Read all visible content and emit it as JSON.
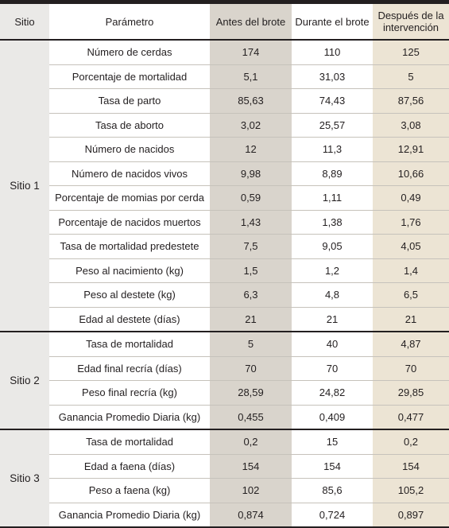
{
  "table": {
    "headers": {
      "site": "Sitio",
      "param": "Parámetro",
      "before": "Antes del brote",
      "during": "Durante el brote",
      "after_line1": "Después de la",
      "after_line2": "intervención"
    },
    "groups": [
      {
        "site": "Sitio 1",
        "rows": [
          {
            "param": "Número de cerdas",
            "before": "174",
            "during": "110",
            "after": "125"
          },
          {
            "param": "Porcentaje de mortalidad",
            "before": "5,1",
            "during": "31,03",
            "after": "5"
          },
          {
            "param": "Tasa de parto",
            "before": "85,63",
            "during": "74,43",
            "after": "87,56"
          },
          {
            "param": "Tasa de aborto",
            "before": "3,02",
            "during": "25,57",
            "after": "3,08"
          },
          {
            "param": "Número de nacidos",
            "before": "12",
            "during": "11,3",
            "after": "12,91"
          },
          {
            "param": "Número de nacidos vivos",
            "before": "9,98",
            "during": "8,89",
            "after": "10,66"
          },
          {
            "param": "Porcentaje de momias por cerda",
            "before": "0,59",
            "during": "1,11",
            "after": "0,49"
          },
          {
            "param": "Porcentaje de nacidos muertos",
            "before": "1,43",
            "during": "1,38",
            "after": "1,76"
          },
          {
            "param": "Tasa de mortalidad predestete",
            "before": "7,5",
            "during": "9,05",
            "after": "4,05"
          },
          {
            "param": "Peso al nacimiento (kg)",
            "before": "1,5",
            "during": "1,2",
            "after": "1,4"
          },
          {
            "param": "Peso al destete (kg)",
            "before": "6,3",
            "during": "4,8",
            "after": "6,5"
          },
          {
            "param": "Edad al destete (días)",
            "before": "21",
            "during": "21",
            "after": "21"
          }
        ]
      },
      {
        "site": "Sitio 2",
        "rows": [
          {
            "param": "Tasa de mortalidad",
            "before": "5",
            "during": "40",
            "after": "4,87"
          },
          {
            "param": "Edad final recría (días)",
            "before": "70",
            "during": "70",
            "after": "70"
          },
          {
            "param": "Peso final recría (kg)",
            "before": "28,59",
            "during": "24,82",
            "after": "29,85"
          },
          {
            "param": "Ganancia Promedio Diaria (kg)",
            "before": "0,455",
            "during": "0,409",
            "after": "0,477"
          }
        ]
      },
      {
        "site": "Sitio 3",
        "rows": [
          {
            "param": "Tasa de mortalidad",
            "before": "0,2",
            "during": "15",
            "after": "0,2"
          },
          {
            "param": "Edad a faena (días)",
            "before": "154",
            "during": "154",
            "after": "154"
          },
          {
            "param": "Peso a faena (kg)",
            "before": "102",
            "during": "85,6",
            "after": "105,2"
          },
          {
            "param": "Ganancia Promedio Diaria (kg)",
            "before": "0,874",
            "during": "0,724",
            "after": "0,897"
          }
        ]
      }
    ]
  }
}
